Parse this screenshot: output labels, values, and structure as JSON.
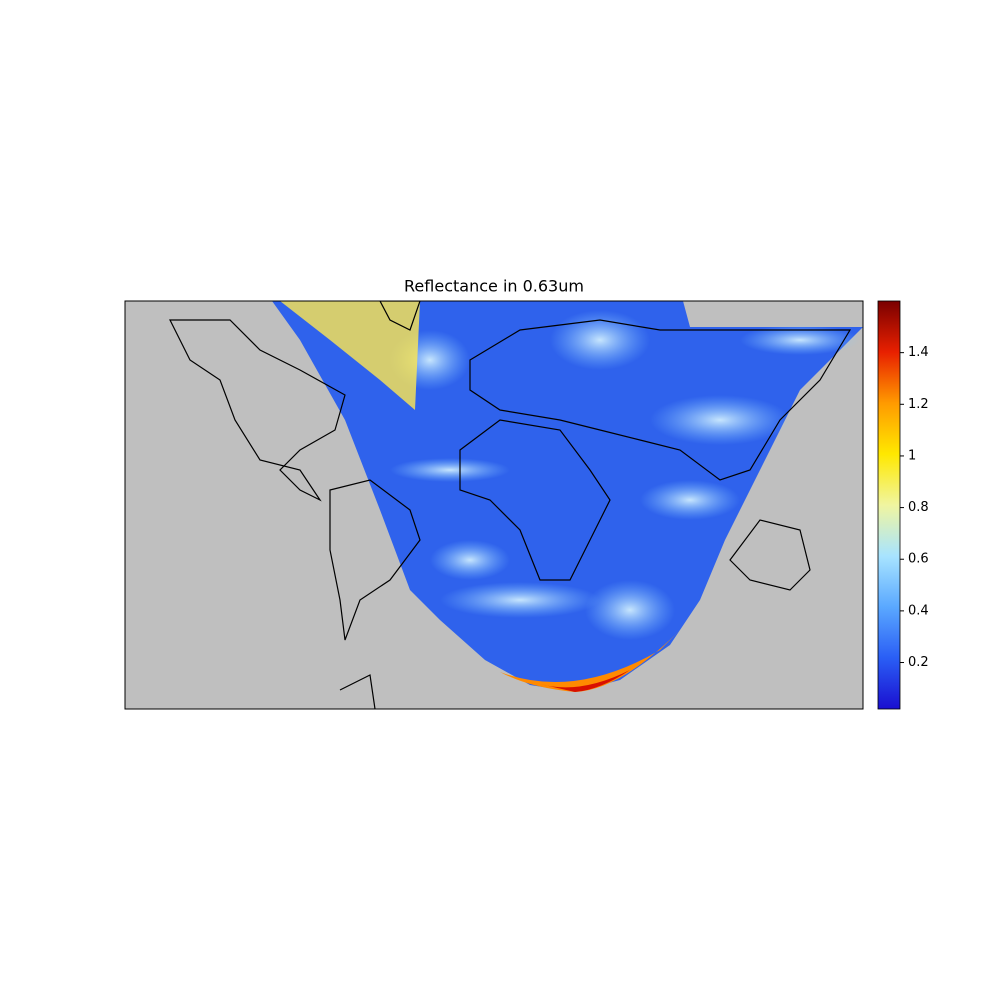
{
  "title": "Reflectance in 0.63um",
  "colorbar": {
    "range": [
      0.02,
      1.6
    ],
    "ticks": [
      0.2,
      0.4,
      0.6,
      0.8,
      1.0,
      1.2,
      1.4
    ],
    "colormap": [
      "#1a0fd0",
      "#2a5ef5",
      "#5aa8ff",
      "#a8e4ff",
      "#f0f5a0",
      "#ffe800",
      "#ff9a00",
      "#e82000",
      "#7a0000"
    ]
  }
}
